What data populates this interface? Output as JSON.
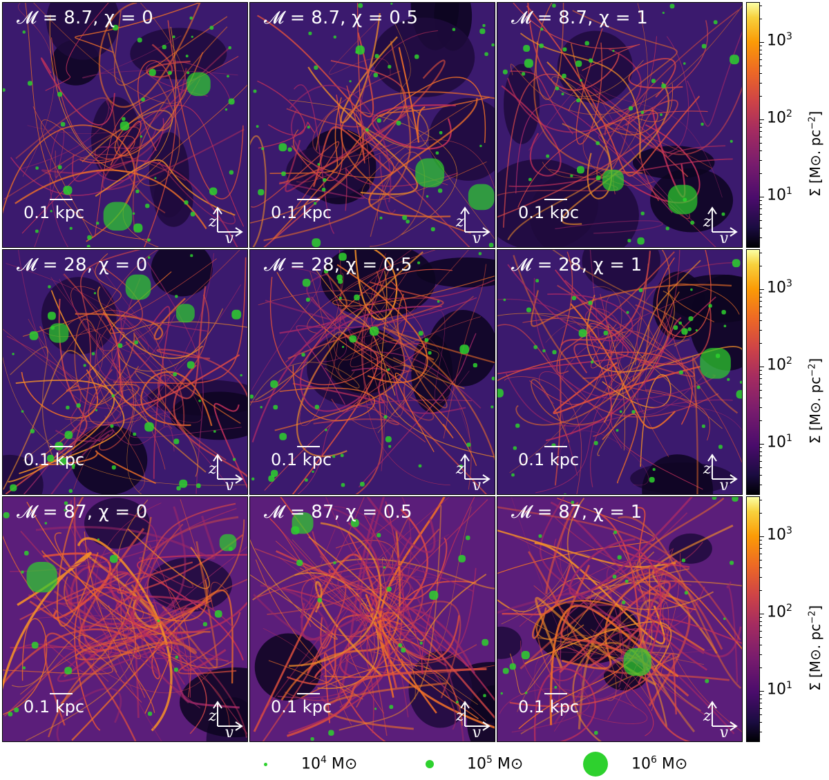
{
  "panels": [
    {
      "title_prefix": "𝓜 = 8.7, ",
      "chi_label": "χ = 0",
      "style": "filament"
    },
    {
      "title_prefix": "𝓜 = 8.7, ",
      "chi_label": "χ = 0.5",
      "style": "filament"
    },
    {
      "title_prefix": "𝓜 = 8.7, ",
      "chi_label": "χ = 1",
      "style": "filament"
    },
    {
      "title_prefix": "𝓜 = 28, ",
      "chi_label": "χ = 0",
      "style": "mixed"
    },
    {
      "title_prefix": "𝓜 = 28, ",
      "chi_label": "χ = 0.5",
      "style": "mixed"
    },
    {
      "title_prefix": "𝓜 = 28, ",
      "chi_label": "χ = 1",
      "style": "mixed"
    },
    {
      "title_prefix": "𝓜 = 87, ",
      "chi_label": "χ = 0",
      "style": "diffuse"
    },
    {
      "title_prefix": "𝓜 = 87, ",
      "chi_label": "χ = 0.5",
      "style": "diffuse"
    },
    {
      "title_prefix": "𝓜 = 87, ",
      "chi_label": "χ = 1",
      "style": "diffuse"
    }
  ],
  "scalebar_label": "0.1 kpc",
  "axis_labels": {
    "vertical": "z",
    "horizontal": "y"
  },
  "colorbar": {
    "tick_base": "10",
    "tick_exponents": [
      "1",
      "2",
      "3"
    ],
    "label": "Σ [M⊙. pc",
    "label_exp": "−2",
    "label_close": "]",
    "colormap": "inferno",
    "scale": "log"
  },
  "legend": [
    {
      "base": "10",
      "exp": "4",
      "unit": " M⊙",
      "size": "small"
    },
    {
      "base": "10",
      "exp": "5",
      "unit": " M⊙",
      "size": "medium"
    },
    {
      "base": "10",
      "exp": "6",
      "unit": " M⊙",
      "size": "large"
    }
  ],
  "colors": {
    "sink": "#2ed12e",
    "text_on_map": "#ffffff"
  }
}
